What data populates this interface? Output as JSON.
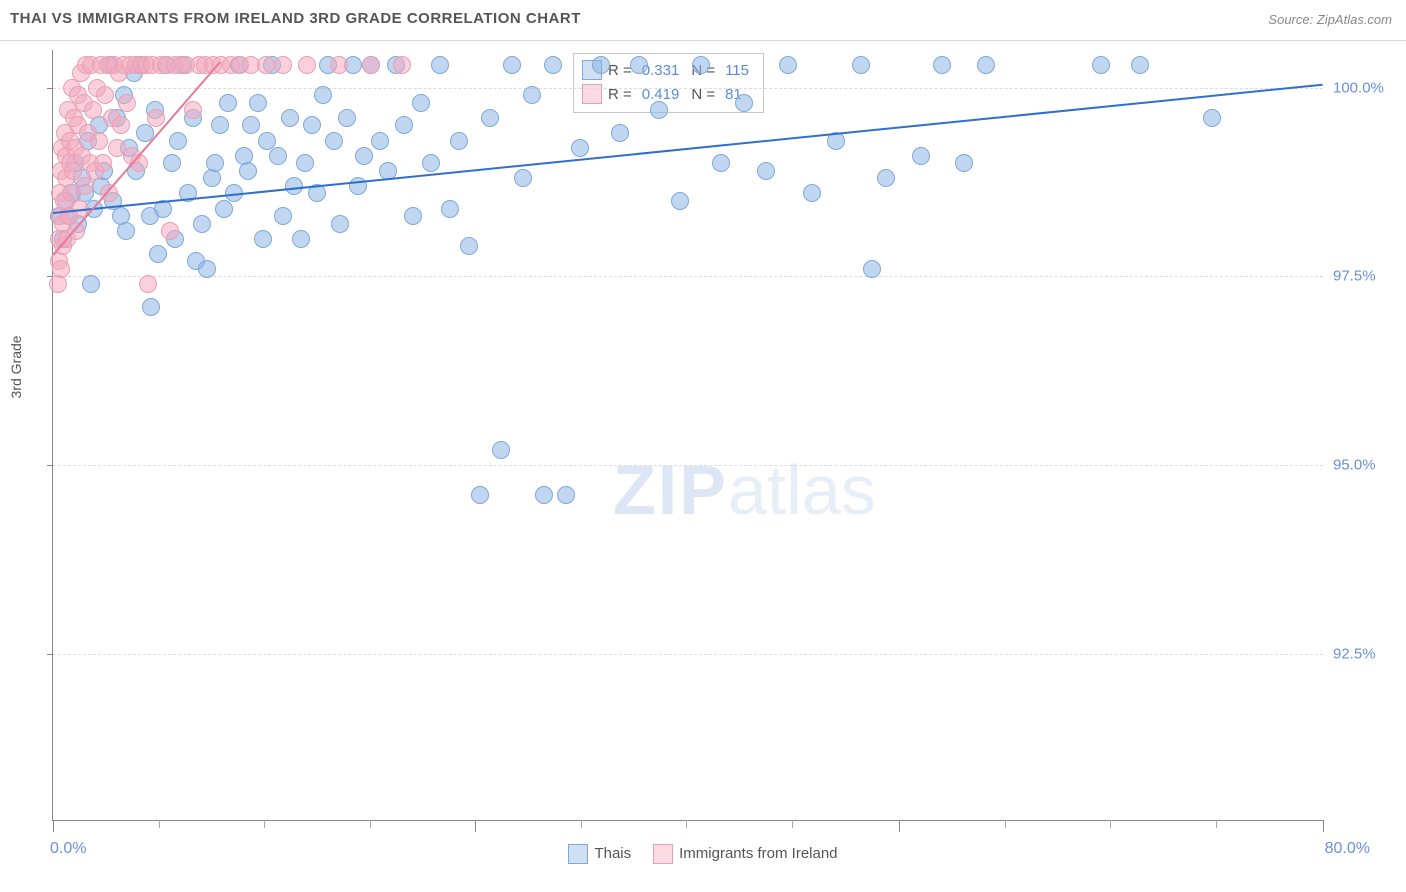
{
  "title": "THAI VS IMMIGRANTS FROM IRELAND 3RD GRADE CORRELATION CHART",
  "source_label": "Source:",
  "source_value": "ZipAtlas.com",
  "ylabel": "3rd Grade",
  "xlim": [
    0,
    80
  ],
  "ylim": [
    90.3,
    100.5
  ],
  "x_end_labels": [
    "0.0%",
    "80.0%"
  ],
  "y_ticks": [
    92.5,
    95.0,
    97.5,
    100.0
  ],
  "y_tick_labels": [
    "92.5%",
    "95.0%",
    "97.5%",
    "100.0%"
  ],
  "x_major_ticks": [
    0,
    26.6,
    53.3,
    80
  ],
  "x_minor_ticks": [
    6.65,
    13.3,
    19.95,
    33.25,
    39.9,
    46.55,
    59.95,
    66.6,
    73.25
  ],
  "watermark": {
    "zip": "ZIP",
    "atlas": "atlas"
  },
  "series": [
    {
      "name": "Thais",
      "marker_fill": "rgba(140,180,230,0.55)",
      "marker_stroke": "#7fa9d8",
      "marker_size": 18,
      "legend_fill": "#cfe0f4",
      "legend_stroke": "#7fa9d8",
      "trend": {
        "color": "#2f6fd0",
        "width": 2,
        "x1": 0,
        "y1": 98.35,
        "x2": 80,
        "y2": 100.05
      },
      "R": "0.331",
      "N": "115",
      "data": [
        [
          0.4,
          98.3
        ],
        [
          0.6,
          98.0
        ],
        [
          0.8,
          98.5
        ],
        [
          1.0,
          98.3
        ],
        [
          1.2,
          98.6
        ],
        [
          1.4,
          99.0
        ],
        [
          1.6,
          98.2
        ],
        [
          1.8,
          98.8
        ],
        [
          2.0,
          98.6
        ],
        [
          2.2,
          99.3
        ],
        [
          2.4,
          97.4
        ],
        [
          2.6,
          98.4
        ],
        [
          2.9,
          99.5
        ],
        [
          3.0,
          98.7
        ],
        [
          3.2,
          98.9
        ],
        [
          3.6,
          100.3
        ],
        [
          3.8,
          98.5
        ],
        [
          4.0,
          99.6
        ],
        [
          4.3,
          98.3
        ],
        [
          4.5,
          99.9
        ],
        [
          4.6,
          98.1
        ],
        [
          4.8,
          99.2
        ],
        [
          5.1,
          100.2
        ],
        [
          5.2,
          98.9
        ],
        [
          5.5,
          100.3
        ],
        [
          5.8,
          99.4
        ],
        [
          6.1,
          98.3
        ],
        [
          6.2,
          97.1
        ],
        [
          6.4,
          99.7
        ],
        [
          6.6,
          97.8
        ],
        [
          6.9,
          98.4
        ],
        [
          7.2,
          100.3
        ],
        [
          7.5,
          99.0
        ],
        [
          7.7,
          98.0
        ],
        [
          7.9,
          99.3
        ],
        [
          8.2,
          100.3
        ],
        [
          8.5,
          98.6
        ],
        [
          8.8,
          99.6
        ],
        [
          9.0,
          97.7
        ],
        [
          9.4,
          98.2
        ],
        [
          9.7,
          97.6
        ],
        [
          10.0,
          98.8
        ],
        [
          10.2,
          99.0
        ],
        [
          10.5,
          99.5
        ],
        [
          10.8,
          98.4
        ],
        [
          11.0,
          99.8
        ],
        [
          11.4,
          98.6
        ],
        [
          11.7,
          100.3
        ],
        [
          12.0,
          99.1
        ],
        [
          12.3,
          98.9
        ],
        [
          12.5,
          99.5
        ],
        [
          12.9,
          99.8
        ],
        [
          13.2,
          98.0
        ],
        [
          13.5,
          99.3
        ],
        [
          13.8,
          100.3
        ],
        [
          14.2,
          99.1
        ],
        [
          14.5,
          98.3
        ],
        [
          14.9,
          99.6
        ],
        [
          15.2,
          98.7
        ],
        [
          15.6,
          98.0
        ],
        [
          15.9,
          99.0
        ],
        [
          16.3,
          99.5
        ],
        [
          16.6,
          98.6
        ],
        [
          17.0,
          99.9
        ],
        [
          17.3,
          100.3
        ],
        [
          17.7,
          99.3
        ],
        [
          18.1,
          98.2
        ],
        [
          18.5,
          99.6
        ],
        [
          18.9,
          100.3
        ],
        [
          19.2,
          98.7
        ],
        [
          19.6,
          99.1
        ],
        [
          20.0,
          100.3
        ],
        [
          20.6,
          99.3
        ],
        [
          21.1,
          98.9
        ],
        [
          21.6,
          100.3
        ],
        [
          22.1,
          99.5
        ],
        [
          22.7,
          98.3
        ],
        [
          23.2,
          99.8
        ],
        [
          23.8,
          99.0
        ],
        [
          24.4,
          100.3
        ],
        [
          25.0,
          98.4
        ],
        [
          25.6,
          99.3
        ],
        [
          26.2,
          97.9
        ],
        [
          26.9,
          94.6
        ],
        [
          27.5,
          99.6
        ],
        [
          28.2,
          95.2
        ],
        [
          28.9,
          100.3
        ],
        [
          29.6,
          98.8
        ],
        [
          30.2,
          99.9
        ],
        [
          30.9,
          94.6
        ],
        [
          31.5,
          100.3
        ],
        [
          32.3,
          94.6
        ],
        [
          33.2,
          99.2
        ],
        [
          34.5,
          100.3
        ],
        [
          35.7,
          99.4
        ],
        [
          36.9,
          100.3
        ],
        [
          38.2,
          99.7
        ],
        [
          39.5,
          98.5
        ],
        [
          40.8,
          100.3
        ],
        [
          42.1,
          99.0
        ],
        [
          43.5,
          99.8
        ],
        [
          44.9,
          98.9
        ],
        [
          46.3,
          100.3
        ],
        [
          47.8,
          98.6
        ],
        [
          49.3,
          99.3
        ],
        [
          50.9,
          100.3
        ],
        [
          51.6,
          97.6
        ],
        [
          52.5,
          98.8
        ],
        [
          54.7,
          99.1
        ],
        [
          56.0,
          100.3
        ],
        [
          57.4,
          99.0
        ],
        [
          58.8,
          100.3
        ],
        [
          66.0,
          100.3
        ],
        [
          68.5,
          100.3
        ],
        [
          73.0,
          99.6
        ]
      ]
    },
    {
      "name": "Immigrants from Ireland",
      "marker_fill": "rgba(244,170,190,0.55)",
      "marker_stroke": "#e8a0b4",
      "marker_size": 18,
      "legend_fill": "#fbdbe3",
      "legend_stroke": "#e8a0b4",
      "trend": {
        "color": "#e57a9a",
        "width": 2,
        "x1": 0,
        "y1": 97.8,
        "x2": 10.5,
        "y2": 100.35
      },
      "R": "0.419",
      "N": "81",
      "data": [
        [
          0.3,
          97.4
        ],
        [
          0.35,
          97.7
        ],
        [
          0.4,
          98.0
        ],
        [
          0.42,
          98.3
        ],
        [
          0.45,
          98.6
        ],
        [
          0.48,
          98.9
        ],
        [
          0.5,
          97.6
        ],
        [
          0.55,
          99.2
        ],
        [
          0.6,
          97.9
        ],
        [
          0.65,
          98.2
        ],
        [
          0.7,
          98.5
        ],
        [
          0.75,
          99.4
        ],
        [
          0.8,
          98.8
        ],
        [
          0.85,
          99.1
        ],
        [
          0.9,
          98.0
        ],
        [
          0.95,
          99.7
        ],
        [
          1.0,
          98.3
        ],
        [
          1.05,
          99.0
        ],
        [
          1.1,
          99.3
        ],
        [
          1.15,
          98.6
        ],
        [
          1.2,
          100.0
        ],
        [
          1.25,
          98.9
        ],
        [
          1.3,
          99.6
        ],
        [
          1.4,
          99.2
        ],
        [
          1.45,
          98.1
        ],
        [
          1.55,
          99.9
        ],
        [
          1.6,
          99.5
        ],
        [
          1.7,
          98.4
        ],
        [
          1.75,
          100.2
        ],
        [
          1.85,
          99.1
        ],
        [
          1.95,
          99.8
        ],
        [
          2.0,
          98.7
        ],
        [
          2.1,
          100.3
        ],
        [
          2.2,
          99.4
        ],
        [
          2.3,
          99.0
        ],
        [
          2.4,
          100.3
        ],
        [
          2.55,
          99.7
        ],
        [
          2.65,
          98.9
        ],
        [
          2.8,
          100.0
        ],
        [
          2.9,
          99.3
        ],
        [
          3.05,
          100.3
        ],
        [
          3.15,
          99.0
        ],
        [
          3.3,
          99.9
        ],
        [
          3.45,
          100.3
        ],
        [
          3.55,
          98.6
        ],
        [
          3.7,
          99.6
        ],
        [
          3.85,
          100.3
        ],
        [
          4.0,
          99.2
        ],
        [
          4.15,
          100.2
        ],
        [
          4.3,
          99.5
        ],
        [
          4.5,
          100.3
        ],
        [
          4.65,
          99.8
        ],
        [
          4.85,
          100.3
        ],
        [
          5.0,
          99.1
        ],
        [
          5.2,
          100.3
        ],
        [
          5.4,
          99.0
        ],
        [
          5.6,
          100.3
        ],
        [
          5.85,
          100.3
        ],
        [
          6.0,
          97.4
        ],
        [
          6.25,
          100.3
        ],
        [
          6.5,
          99.6
        ],
        [
          6.8,
          100.3
        ],
        [
          7.1,
          100.3
        ],
        [
          7.4,
          98.1
        ],
        [
          7.7,
          100.3
        ],
        [
          8.0,
          100.3
        ],
        [
          8.4,
          100.3
        ],
        [
          8.8,
          99.7
        ],
        [
          9.2,
          100.3
        ],
        [
          9.6,
          100.3
        ],
        [
          10.1,
          100.3
        ],
        [
          10.6,
          100.3
        ],
        [
          11.2,
          100.3
        ],
        [
          11.8,
          100.3
        ],
        [
          12.5,
          100.3
        ],
        [
          13.4,
          100.3
        ],
        [
          14.5,
          100.3
        ],
        [
          16.0,
          100.3
        ],
        [
          18.0,
          100.3
        ],
        [
          20.0,
          100.3
        ],
        [
          22.0,
          100.3
        ]
      ]
    }
  ],
  "stats_labels": {
    "R": "R =",
    "N": "N ="
  },
  "legend_bottom": [
    {
      "label": "Thais",
      "fill": "#cfe0f4",
      "stroke": "#7fa9d8"
    },
    {
      "label": "Immigrants from Ireland",
      "fill": "#fbdbe3",
      "stroke": "#e8a0b4"
    }
  ],
  "plot_colors": {
    "grid": "#dcdcdc",
    "axis": "#888",
    "text_num": "#5b8ad6"
  }
}
